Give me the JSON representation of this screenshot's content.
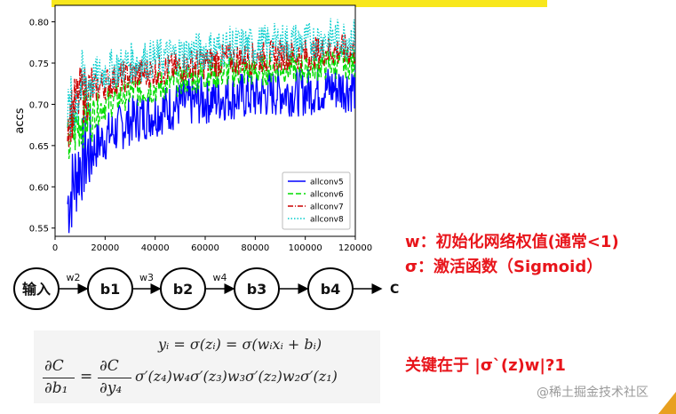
{
  "chart_data": {
    "type": "line",
    "title": "",
    "xlabel": "",
    "ylabel": "accs",
    "xlim": [
      0,
      120000
    ],
    "ylim": [
      0.54,
      0.82
    ],
    "xticks": [
      0,
      20000,
      40000,
      60000,
      80000,
      100000,
      120000
    ],
    "xtick_labels": [
      "0",
      "20000",
      "40000",
      "60000",
      "80000",
      "100000",
      "120000"
    ],
    "yticks": [
      0.55,
      0.6,
      0.65,
      0.7,
      0.75,
      0.8
    ],
    "ytick_labels": [
      "0.55",
      "0.60",
      "0.65",
      "0.70",
      "0.75",
      "0.80"
    ],
    "grid": false,
    "legend_position": "lower-right",
    "series": [
      {
        "name": "allconv5",
        "color": "#0000ff",
        "style": "solid",
        "x": [
          5000,
          10000,
          20000,
          30000,
          40000,
          50000,
          60000,
          70000,
          80000,
          90000,
          100000,
          110000,
          120000
        ],
        "y": [
          0.58,
          0.63,
          0.66,
          0.68,
          0.69,
          0.7,
          0.705,
          0.71,
          0.71,
          0.715,
          0.715,
          0.72,
          0.72
        ],
        "spread": 0.03
      },
      {
        "name": "allconv6",
        "color": "#00dd00",
        "style": "dashed",
        "x": [
          5000,
          10000,
          20000,
          30000,
          40000,
          50000,
          60000,
          70000,
          80000,
          90000,
          100000,
          110000,
          120000
        ],
        "y": [
          0.65,
          0.68,
          0.7,
          0.715,
          0.72,
          0.73,
          0.735,
          0.74,
          0.74,
          0.745,
          0.745,
          0.75,
          0.75
        ],
        "spread": 0.02
      },
      {
        "name": "allconv7",
        "color": "#cc0000",
        "style": "dashdot",
        "x": [
          5000,
          10000,
          20000,
          30000,
          40000,
          50000,
          60000,
          70000,
          80000,
          90000,
          100000,
          110000,
          120000
        ],
        "y": [
          0.68,
          0.71,
          0.725,
          0.735,
          0.74,
          0.745,
          0.75,
          0.755,
          0.755,
          0.76,
          0.76,
          0.765,
          0.765
        ],
        "spread": 0.02
      },
      {
        "name": "allconv8",
        "color": "#00cccc",
        "style": "dotted",
        "x": [
          5000,
          10000,
          20000,
          30000,
          40000,
          50000,
          60000,
          70000,
          80000,
          90000,
          100000,
          110000,
          120000
        ],
        "y": [
          0.68,
          0.72,
          0.74,
          0.75,
          0.755,
          0.76,
          0.765,
          0.77,
          0.77,
          0.775,
          0.775,
          0.78,
          0.78
        ],
        "spread": 0.025
      }
    ]
  },
  "notes": {
    "w": "w：初始化网络权值(通常<1)",
    "sigma": "σ：激活函数（Sigmoid）",
    "key": "关键在于 |σ`(z)w|?1"
  },
  "diagram": {
    "nodes": [
      "输入",
      "b1",
      "b2",
      "b3",
      "b4"
    ],
    "edge_labels": [
      "",
      "w2",
      "w3",
      "w4"
    ],
    "end_label": "C"
  },
  "formula": {
    "line1": "yᵢ = σ(zᵢ) = σ(wᵢxᵢ + bᵢ)",
    "lhs_num": "∂C",
    "lhs_den": "∂b₁",
    "eq": "=",
    "rhs_num": "∂C",
    "rhs_den": "∂y₄",
    "rhs_rest": "σ′(z₄)w₄σ′(z₃)w₃σ′(z₂)w₂σ′(z₁)"
  },
  "watermark": "@稀土掘金技术社区",
  "colors": {
    "accent_red": "#e8151b",
    "banner_yellow": "#f8e71c",
    "corner_orange": "#e8a020"
  }
}
